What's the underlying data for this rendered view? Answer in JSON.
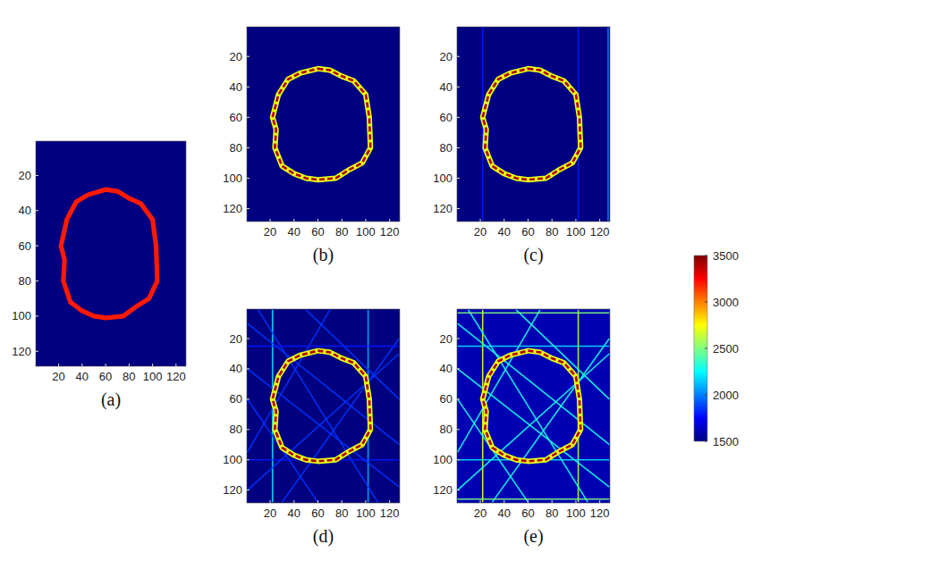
{
  "chart_data": [
    {
      "type": "heatmap",
      "title": "(a)",
      "xlim": [
        0.5,
        128.5
      ],
      "ylim": [
        0.5,
        128.5
      ],
      "xticks": [
        20,
        40,
        60,
        80,
        100,
        120
      ],
      "yticks": [
        20,
        40,
        60,
        80,
        100,
        120
      ],
      "background": 1500,
      "ring": {
        "value": 3200,
        "x": [
          60,
          70,
          80,
          90,
          100,
          103,
          104,
          97,
          85,
          75,
          60,
          50,
          40,
          30,
          24,
          25,
          22,
          27,
          35,
          45
        ],
        "y": [
          28,
          29,
          33,
          36,
          45,
          60,
          80,
          90,
          95,
          100,
          101,
          100,
          97,
          92,
          80,
          68,
          60,
          45,
          35,
          31
        ]
      },
      "streaks": []
    },
    {
      "type": "heatmap",
      "title": "(b)",
      "xlim": [
        0.5,
        128.5
      ],
      "ylim": [
        0.5,
        128.5
      ],
      "xticks": [
        20,
        40,
        60,
        80,
        100,
        120
      ],
      "yticks": [
        20,
        40,
        60,
        80,
        100,
        120
      ],
      "background": 1500,
      "ring": {
        "value": 3400,
        "edge_value": 2700,
        "x": [
          60,
          70,
          80,
          90,
          100,
          103,
          104,
          97,
          85,
          75,
          60,
          50,
          40,
          30,
          24,
          25,
          22,
          27,
          35,
          45
        ],
        "y": [
          28,
          29,
          33,
          36,
          45,
          60,
          80,
          90,
          95,
          100,
          101,
          100,
          97,
          92,
          80,
          68,
          60,
          45,
          35,
          31
        ]
      },
      "streaks": []
    },
    {
      "type": "heatmap",
      "title": "(c)",
      "xlim": [
        0.5,
        128.5
      ],
      "ylim": [
        0.5,
        128.5
      ],
      "xticks": [
        20,
        40,
        60,
        80,
        100,
        120
      ],
      "yticks": [
        20,
        40,
        60,
        80,
        100,
        120
      ],
      "background": 1500,
      "ring": {
        "value": 3400,
        "edge_value": 2700,
        "x": [
          60,
          70,
          80,
          90,
          100,
          103,
          104,
          97,
          85,
          75,
          60,
          50,
          40,
          30,
          24,
          25,
          22,
          27,
          35,
          45
        ],
        "y": [
          28,
          29,
          33,
          36,
          45,
          60,
          80,
          90,
          95,
          100,
          101,
          100,
          97,
          92,
          80,
          68,
          60,
          45,
          35,
          31
        ]
      },
      "streaks": [
        {
          "x1": 22,
          "y1": 1,
          "x2": 22,
          "y2": 128,
          "value": 1800
        },
        {
          "x1": 102,
          "y1": 1,
          "x2": 102,
          "y2": 128,
          "value": 1800
        },
        {
          "x1": 127,
          "y1": 1,
          "x2": 127,
          "y2": 128,
          "value": 2000
        }
      ]
    },
    {
      "type": "heatmap",
      "title": "(d)",
      "xlim": [
        0.5,
        128.5
      ],
      "ylim": [
        0.5,
        128.5
      ],
      "xticks": [
        20,
        40,
        60,
        80,
        100,
        120
      ],
      "yticks": [
        20,
        40,
        60,
        80,
        100,
        120
      ],
      "background": 1500,
      "ring": {
        "value": 3400,
        "edge_value": 2700,
        "x": [
          60,
          70,
          80,
          90,
          100,
          103,
          104,
          97,
          85,
          75,
          60,
          50,
          40,
          30,
          24,
          25,
          22,
          27,
          35,
          45
        ],
        "y": [
          28,
          29,
          33,
          36,
          45,
          60,
          80,
          90,
          95,
          100,
          101,
          100,
          97,
          92,
          80,
          68,
          60,
          45,
          35,
          31
        ]
      },
      "streaks": [
        {
          "x1": 22,
          "y1": 1,
          "x2": 22,
          "y2": 128,
          "value": 2200
        },
        {
          "x1": 102,
          "y1": 1,
          "x2": 102,
          "y2": 128,
          "value": 2100
        },
        {
          "x1": 1,
          "y1": 10,
          "x2": 128,
          "y2": 90,
          "value": 1850
        },
        {
          "x1": 1,
          "y1": 40,
          "x2": 128,
          "y2": 118,
          "value": 1850
        },
        {
          "x1": 10,
          "y1": 1,
          "x2": 110,
          "y2": 128,
          "value": 1850
        },
        {
          "x1": 1,
          "y1": 95,
          "x2": 70,
          "y2": 1,
          "value": 1850
        },
        {
          "x1": 30,
          "y1": 128,
          "x2": 128,
          "y2": 20,
          "value": 1850
        },
        {
          "x1": 1,
          "y1": 120,
          "x2": 128,
          "y2": 30,
          "value": 1850
        },
        {
          "x1": 50,
          "y1": 1,
          "x2": 128,
          "y2": 60,
          "value": 1850
        },
        {
          "x1": 1,
          "y1": 60,
          "x2": 60,
          "y2": 128,
          "value": 1850
        },
        {
          "x1": 1,
          "y1": 25,
          "x2": 128,
          "y2": 25,
          "value": 1800
        },
        {
          "x1": 1,
          "y1": 100,
          "x2": 128,
          "y2": 100,
          "value": 1800
        }
      ]
    },
    {
      "type": "heatmap",
      "title": "(e)",
      "xlim": [
        0.5,
        128.5
      ],
      "ylim": [
        0.5,
        128.5
      ],
      "xticks": [
        20,
        40,
        60,
        80,
        100,
        120
      ],
      "yticks": [
        20,
        40,
        60,
        80,
        100,
        120
      ],
      "background": 1600,
      "ring": {
        "value": 3400,
        "edge_value": 2700,
        "x": [
          60,
          70,
          80,
          90,
          100,
          103,
          104,
          97,
          85,
          75,
          60,
          50,
          40,
          30,
          24,
          25,
          22,
          27,
          35,
          45
        ],
        "y": [
          28,
          29,
          33,
          36,
          45,
          60,
          80,
          90,
          95,
          100,
          101,
          100,
          97,
          92,
          80,
          68,
          60,
          45,
          35,
          31
        ]
      },
      "streaks": [
        {
          "x1": 22,
          "y1": 1,
          "x2": 22,
          "y2": 128,
          "value": 2700
        },
        {
          "x1": 102,
          "y1": 1,
          "x2": 102,
          "y2": 128,
          "value": 2600
        },
        {
          "x1": 1,
          "y1": 10,
          "x2": 128,
          "y2": 90,
          "value": 2300
        },
        {
          "x1": 1,
          "y1": 40,
          "x2": 128,
          "y2": 118,
          "value": 2300
        },
        {
          "x1": 10,
          "y1": 1,
          "x2": 110,
          "y2": 128,
          "value": 2300
        },
        {
          "x1": 1,
          "y1": 95,
          "x2": 70,
          "y2": 1,
          "value": 2300
        },
        {
          "x1": 30,
          "y1": 128,
          "x2": 128,
          "y2": 20,
          "value": 2300
        },
        {
          "x1": 1,
          "y1": 120,
          "x2": 128,
          "y2": 30,
          "value": 2300
        },
        {
          "x1": 50,
          "y1": 1,
          "x2": 128,
          "y2": 60,
          "value": 2300
        },
        {
          "x1": 1,
          "y1": 60,
          "x2": 60,
          "y2": 128,
          "value": 2300
        },
        {
          "x1": 1,
          "y1": 25,
          "x2": 128,
          "y2": 25,
          "value": 2200
        },
        {
          "x1": 1,
          "y1": 100,
          "x2": 128,
          "y2": 100,
          "value": 2200
        },
        {
          "x1": 1,
          "y1": 3,
          "x2": 128,
          "y2": 3,
          "value": 2500
        },
        {
          "x1": 1,
          "y1": 126,
          "x2": 128,
          "y2": 126,
          "value": 2500
        }
      ]
    }
  ],
  "colorbar": {
    "range": [
      1500,
      3500
    ],
    "ticks": [
      1500,
      2000,
      2500,
      3000,
      3500
    ]
  }
}
